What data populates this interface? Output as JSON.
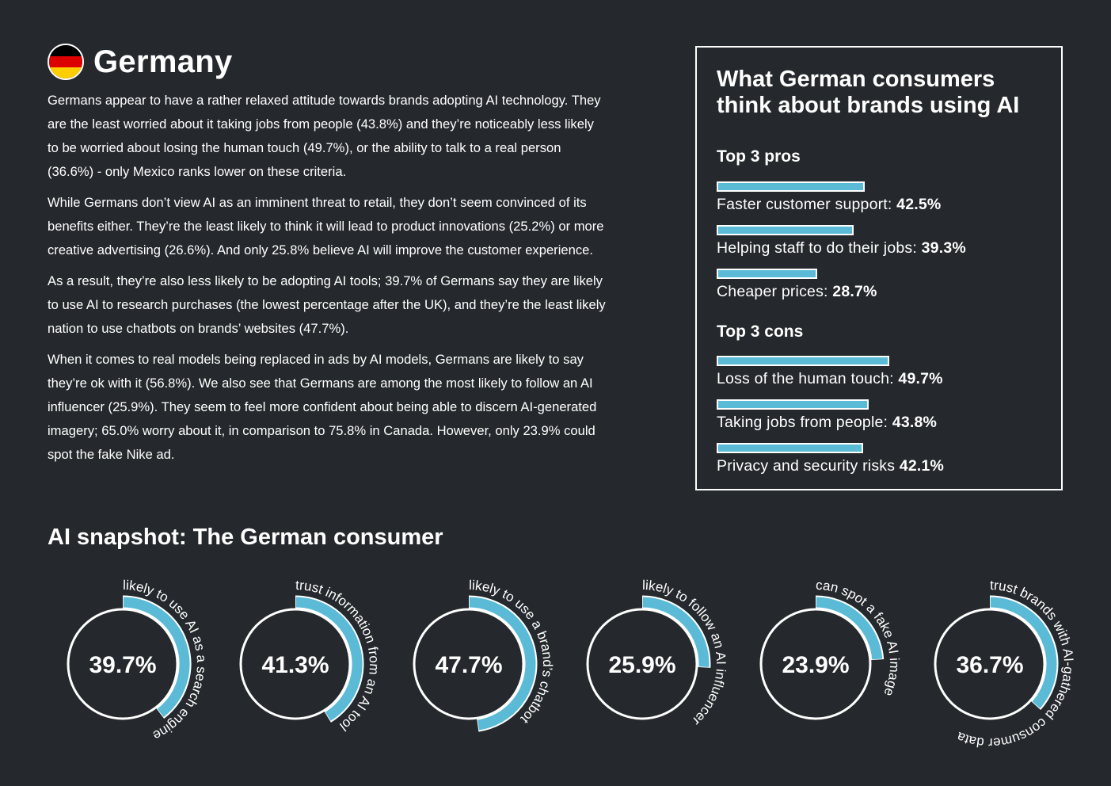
{
  "header": {
    "flag_icon": "germany-flag-icon",
    "flag_colors": [
      "#000000",
      "#dd0000",
      "#ffce00"
    ],
    "title": "Germany"
  },
  "body": {
    "paragraphs": [
      "Germans appear to have a rather relaxed attitude towards brands adopting AI technology. They are the least worried about it taking jobs from people (43.8%) and they’re noticeably less likely to be worried about losing the human touch (49.7%), or the ability to talk to a real person (36.6%) - only Mexico ranks lower on these criteria.",
      "While Germans don’t view AI as an imminent threat to retail, they don’t seem convinced of its benefits either. They’re the least likely to think it will lead to product innovations (25.2%) or more creative advertising (26.6%). And only 25.8% believe AI will improve the customer experience.",
      "As a result, they’re also less likely to be adopting AI tools; 39.7% of Germans say they are likely to use AI to research purchases (the lowest percentage after the UK), and they’re the least likely nation to use chatbots on brands’ websites (47.7%).",
      "When it comes to real models being replaced in ads by AI models, Germans are likely to say they’re ok with it (56.8%). We also see that Germans are among the most likely to follow an AI influencer (25.9%). They seem to feel more confident about being able to discern AI-generated imagery; 65.0% worry about it, in comparison to 75.8% in Canada. However, only 23.9% could spot the fake Nike ad."
    ]
  },
  "panel": {
    "title": "What German consumers think about brands using AI",
    "pros_heading": "Top 3 pros",
    "pros": [
      {
        "label": "Faster customer support: ",
        "value_text": "42.5%",
        "value": 42.5
      },
      {
        "label": "Helping staff to do their jobs: ",
        "value_text": "39.3%",
        "value": 39.3
      },
      {
        "label": "Cheaper prices: ",
        "value_text": "28.7%",
        "value": 28.7
      }
    ],
    "cons_heading": "Top 3 cons",
    "cons": [
      {
        "label": "Loss of the human touch: ",
        "value_text": "49.7%",
        "value": 49.7
      },
      {
        "label": "Taking jobs from people: ",
        "value_text": "43.8%",
        "value": 43.8
      },
      {
        "label": "Privacy and security risks ",
        "value_text": "42.1%",
        "value": 42.1
      }
    ]
  },
  "snapshot": {
    "title": "AI snapshot: The German consumer",
    "accent_color": "#5bbbd6",
    "gauges": [
      {
        "value": 39.7,
        "value_text": "39.7%",
        "caption": "likely to use AI as a search engine"
      },
      {
        "value": 41.3,
        "value_text": "41.3%",
        "caption": "trust information from an AI tool"
      },
      {
        "value": 47.7,
        "value_text": "47.7%",
        "caption": "likely to use a brand’s chatbot"
      },
      {
        "value": 25.9,
        "value_text": "25.9%",
        "caption": "likely to follow an AI influencer"
      },
      {
        "value": 23.9,
        "value_text": "23.9%",
        "caption": "can spot a fake AI image"
      },
      {
        "value": 36.7,
        "value_text": "36.7%",
        "caption": "trust brands with AI-gathered consumer data"
      }
    ]
  }
}
